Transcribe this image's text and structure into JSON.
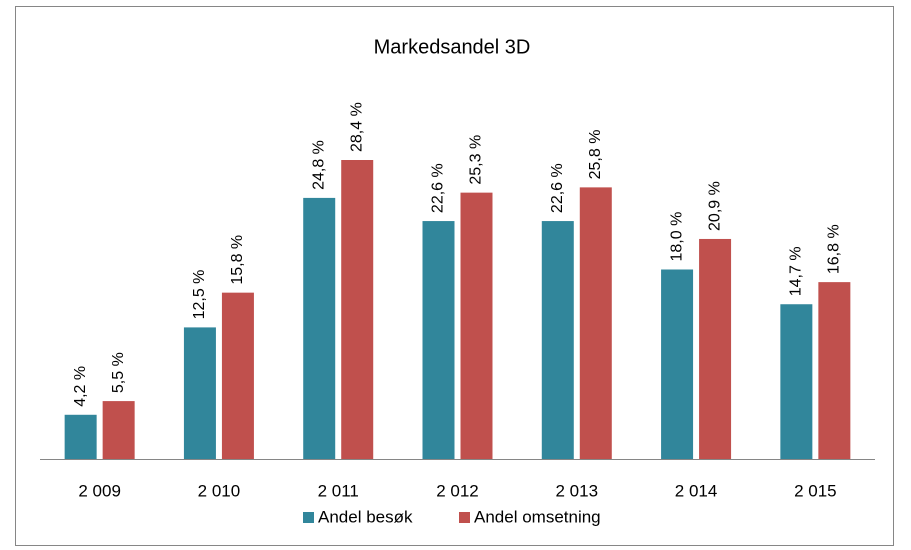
{
  "chart_data": {
    "type": "bar",
    "title": "Markedsandel 3D",
    "categories": [
      "2 009",
      "2 010",
      "2 011",
      "2 012",
      "2 013",
      "2 014",
      "2 015"
    ],
    "series": [
      {
        "name": "Andel besøk",
        "color": "#31869b",
        "values": [
          4.2,
          12.5,
          24.8,
          22.6,
          22.6,
          18.0,
          14.7
        ],
        "value_labels": [
          "4,2 %",
          "12,5 %",
          "24,8 %",
          "22,6 %",
          "22,6 %",
          "18,0 %",
          "14,7 %"
        ]
      },
      {
        "name": "Andel omsetning",
        "color": "#c0504d",
        "values": [
          5.5,
          15.8,
          28.4,
          25.3,
          25.8,
          20.9,
          16.8
        ],
        "value_labels": [
          "5,5 %",
          "15,8 %",
          "28,4 %",
          "25,3 %",
          "25,8 %",
          "20,9 %",
          "16,8 %"
        ]
      }
    ],
    "legend": "bottom"
  }
}
